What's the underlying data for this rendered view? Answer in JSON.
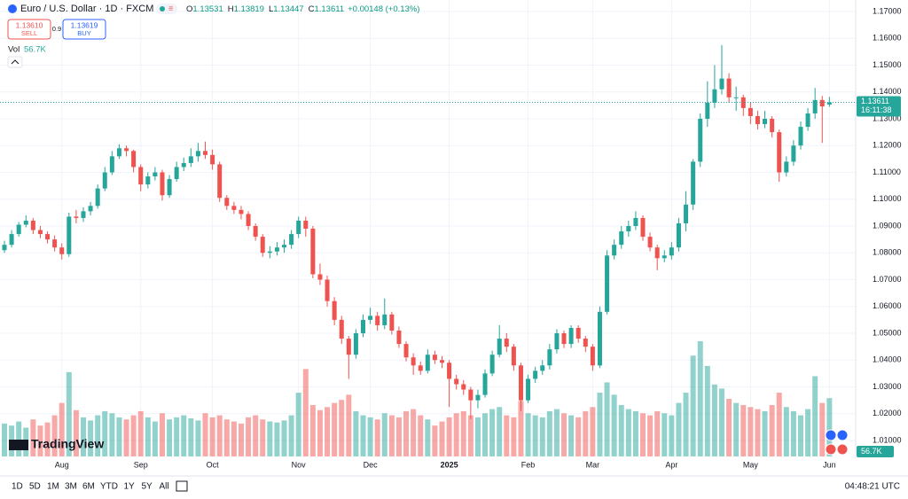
{
  "header": {
    "title": "Euro / U.S. Dollar · 1D · FXCM",
    "legend_keys": [
      "O",
      "H",
      "L",
      "C"
    ],
    "change": "+0.00148 (+0.13%)",
    "sell_price": "1.13610",
    "sell_label": "SELL",
    "spread": "0.9",
    "buy_price": "1.13619",
    "buy_label": "BUY",
    "vol_label": "Vol",
    "vol_value": "56.7K",
    "logo": "TradingView"
  },
  "chart_data": {
    "type": "candlestick",
    "up_color": "#26a69a",
    "down_color": "#ef5350",
    "grid": true,
    "ylim": [
      1.00405,
      1.1743
    ],
    "yticks": [
      {
        "value": 1.17,
        "label": "1.17000"
      },
      {
        "value": 1.16,
        "label": "1.16000"
      },
      {
        "value": 1.15,
        "label": "1.15000"
      },
      {
        "value": 1.14,
        "label": "1.14000"
      },
      {
        "value": 1.13,
        "label": "1.13000"
      },
      {
        "value": 1.12,
        "label": "1.12000"
      },
      {
        "value": 1.11,
        "label": "1.11000"
      },
      {
        "value": 1.1,
        "label": "1.10000"
      },
      {
        "value": 1.09,
        "label": "1.09000"
      },
      {
        "value": 1.08,
        "label": "1.08000"
      },
      {
        "value": 1.07,
        "label": "1.07000"
      },
      {
        "value": 1.06,
        "label": "1.06000"
      },
      {
        "value": 1.05,
        "label": "1.05000"
      },
      {
        "value": 1.04,
        "label": "1.04000"
      },
      {
        "value": 1.03,
        "label": "1.03000"
      },
      {
        "value": 1.02,
        "label": "1.02000"
      },
      {
        "value": 1.01,
        "label": "1.01000"
      }
    ],
    "xticks": [
      {
        "value": 8,
        "label": "Aug"
      },
      {
        "value": 19,
        "label": "Sep"
      },
      {
        "value": 29,
        "label": "Oct"
      },
      {
        "value": 41,
        "label": "Nov"
      },
      {
        "value": 51,
        "label": "Dec"
      },
      {
        "value": 62,
        "label": "2025"
      },
      {
        "value": 73,
        "label": "Feb"
      },
      {
        "value": 82,
        "label": "Mar"
      },
      {
        "value": 93,
        "label": "Apr"
      },
      {
        "value": 104,
        "label": "May"
      },
      {
        "value": 115,
        "label": "Jun"
      }
    ],
    "ohlc": [
      [
        1.081,
        1.0845,
        1.08,
        1.083
      ],
      [
        1.083,
        1.0885,
        1.082,
        1.087
      ],
      [
        1.087,
        1.0915,
        1.086,
        1.0905
      ],
      [
        1.0905,
        1.094,
        1.0895,
        1.092
      ],
      [
        1.092,
        1.093,
        1.087,
        1.0885
      ],
      [
        1.0885,
        1.09,
        1.0855,
        1.087
      ],
      [
        1.087,
        1.088,
        1.0835,
        1.085
      ],
      [
        1.085,
        1.0865,
        1.0805,
        1.082
      ],
      [
        1.082,
        1.0835,
        1.0775,
        1.0795
      ],
      [
        1.0795,
        1.095,
        1.0785,
        1.0935
      ],
      [
        1.0935,
        1.096,
        1.091,
        1.093
      ],
      [
        1.093,
        1.097,
        1.0915,
        1.0955
      ],
      [
        1.0955,
        1.099,
        1.094,
        1.0975
      ],
      [
        1.0975,
        1.1055,
        1.0965,
        1.104
      ],
      [
        1.104,
        1.112,
        1.103,
        1.11
      ],
      [
        1.11,
        1.118,
        1.109,
        1.116
      ],
      [
        1.116,
        1.1205,
        1.115,
        1.119
      ],
      [
        1.119,
        1.12,
        1.116,
        1.118
      ],
      [
        1.118,
        1.1185,
        1.11,
        1.112
      ],
      [
        1.112,
        1.113,
        1.103,
        1.1055
      ],
      [
        1.1055,
        1.11,
        1.104,
        1.1085
      ],
      [
        1.1085,
        1.112,
        1.107,
        1.11
      ],
      [
        1.11,
        1.111,
        1.0995,
        1.1015
      ],
      [
        1.1015,
        1.109,
        1.1005,
        1.1075
      ],
      [
        1.1075,
        1.114,
        1.1065,
        1.112
      ],
      [
        1.112,
        1.1155,
        1.1105,
        1.1135
      ],
      [
        1.1135,
        1.119,
        1.112,
        1.116
      ],
      [
        1.116,
        1.121,
        1.114,
        1.118
      ],
      [
        1.118,
        1.1215,
        1.115,
        1.1165
      ],
      [
        1.1165,
        1.1185,
        1.111,
        1.113
      ],
      [
        1.113,
        1.114,
        1.099,
        1.1005
      ],
      [
        1.1005,
        1.1015,
        1.096,
        1.0975
      ],
      [
        1.0975,
        1.099,
        1.0945,
        1.096
      ],
      [
        1.096,
        1.0975,
        1.0925,
        1.0945
      ],
      [
        1.0945,
        1.0955,
        1.0885,
        1.09
      ],
      [
        1.09,
        1.091,
        1.0845,
        1.086
      ],
      [
        1.086,
        1.087,
        1.0785,
        1.08
      ],
      [
        1.08,
        1.0825,
        1.078,
        1.0805
      ],
      [
        1.0805,
        1.084,
        1.079,
        1.082
      ],
      [
        1.082,
        1.085,
        1.08,
        1.083
      ],
      [
        1.083,
        1.0885,
        1.0815,
        1.087
      ],
      [
        1.087,
        1.0935,
        1.0855,
        1.092
      ],
      [
        1.092,
        1.0935,
        1.086,
        1.089
      ],
      [
        1.089,
        1.09,
        1.0705,
        1.072
      ],
      [
        1.072,
        1.076,
        1.068,
        1.07
      ],
      [
        1.07,
        1.0715,
        1.06,
        1.062
      ],
      [
        1.062,
        1.0635,
        1.053,
        1.055
      ],
      [
        1.055,
        1.0565,
        1.046,
        1.048
      ],
      [
        1.048,
        1.049,
        1.033,
        1.042
      ],
      [
        1.042,
        1.0515,
        1.0405,
        1.05
      ],
      [
        1.05,
        1.057,
        1.0485,
        1.055
      ],
      [
        1.055,
        1.0595,
        1.0535,
        1.0565
      ],
      [
        1.0565,
        1.058,
        1.051,
        1.053
      ],
      [
        1.053,
        1.063,
        1.0515,
        1.057
      ],
      [
        1.057,
        1.058,
        1.0495,
        1.051
      ],
      [
        1.051,
        1.0525,
        1.0445,
        1.046
      ],
      [
        1.046,
        1.047,
        1.0395,
        1.041
      ],
      [
        1.041,
        1.0425,
        1.0345,
        1.038
      ],
      [
        1.038,
        1.0395,
        1.0345,
        1.036
      ],
      [
        1.036,
        1.044,
        1.035,
        1.042
      ],
      [
        1.042,
        1.0435,
        1.0385,
        1.04
      ],
      [
        1.04,
        1.0415,
        1.037,
        1.039
      ],
      [
        1.039,
        1.04,
        1.0225,
        1.033
      ],
      [
        1.033,
        1.0345,
        1.029,
        1.031
      ],
      [
        1.031,
        1.0325,
        1.027,
        1.029
      ],
      [
        1.029,
        1.03,
        1.018,
        1.025
      ],
      [
        1.025,
        1.029,
        1.022,
        1.027
      ],
      [
        1.027,
        1.0365,
        1.026,
        1.035
      ],
      [
        1.035,
        1.0435,
        1.034,
        1.042
      ],
      [
        1.042,
        1.053,
        1.041,
        1.048
      ],
      [
        1.048,
        1.05,
        1.043,
        1.045
      ],
      [
        1.045,
        1.046,
        1.036,
        1.038
      ],
      [
        1.038,
        1.039,
        1.021,
        1.025
      ],
      [
        1.025,
        1.0345,
        1.024,
        1.033
      ],
      [
        1.033,
        1.0375,
        1.0315,
        1.036
      ],
      [
        1.036,
        1.04,
        1.0345,
        1.038
      ],
      [
        1.038,
        1.046,
        1.0365,
        1.044
      ],
      [
        1.044,
        1.0515,
        1.0425,
        1.05
      ],
      [
        1.05,
        1.051,
        1.0445,
        1.046
      ],
      [
        1.046,
        1.053,
        1.0445,
        1.052
      ],
      [
        1.052,
        1.053,
        1.0465,
        1.048
      ],
      [
        1.048,
        1.049,
        1.043,
        1.045
      ],
      [
        1.045,
        1.046,
        1.036,
        1.038
      ],
      [
        1.038,
        1.06,
        1.037,
        1.058
      ],
      [
        1.058,
        1.081,
        1.057,
        1.079
      ],
      [
        1.079,
        1.085,
        1.0775,
        1.083
      ],
      [
        1.083,
        1.09,
        1.0815,
        1.088
      ],
      [
        1.088,
        1.092,
        1.086,
        1.09
      ],
      [
        1.09,
        1.0955,
        1.0885,
        1.093
      ],
      [
        1.093,
        1.094,
        1.0845,
        1.086
      ],
      [
        1.086,
        1.0875,
        1.0805,
        1.082
      ],
      [
        1.082,
        1.083,
        1.0735,
        1.078
      ],
      [
        1.078,
        1.081,
        1.0765,
        1.079
      ],
      [
        1.079,
        1.084,
        1.0775,
        1.082
      ],
      [
        1.082,
        1.093,
        1.0805,
        1.091
      ],
      [
        1.091,
        1.103,
        1.088,
        1.098
      ],
      [
        1.098,
        1.115,
        1.096,
        1.114
      ],
      [
        1.114,
        1.132,
        1.112,
        1.13
      ],
      [
        1.13,
        1.144,
        1.127,
        1.136
      ],
      [
        1.136,
        1.15,
        1.134,
        1.141
      ],
      [
        1.141,
        1.1575,
        1.139,
        1.145
      ],
      [
        1.145,
        1.147,
        1.136,
        1.138
      ],
      [
        1.138,
        1.142,
        1.133,
        1.138
      ],
      [
        1.138,
        1.139,
        1.131,
        1.134
      ],
      [
        1.134,
        1.136,
        1.128,
        1.131
      ],
      [
        1.131,
        1.133,
        1.126,
        1.128
      ],
      [
        1.128,
        1.133,
        1.1265,
        1.13
      ],
      [
        1.13,
        1.131,
        1.123,
        1.125
      ],
      [
        1.125,
        1.126,
        1.1065,
        1.11
      ],
      [
        1.11,
        1.116,
        1.1085,
        1.114
      ],
      [
        1.114,
        1.122,
        1.1125,
        1.12
      ],
      [
        1.12,
        1.129,
        1.1185,
        1.127
      ],
      [
        1.127,
        1.134,
        1.1255,
        1.132
      ],
      [
        1.132,
        1.1415,
        1.13,
        1.137
      ],
      [
        1.137,
        1.1385,
        1.121,
        1.1346
      ],
      [
        1.13531,
        1.13819,
        1.13447,
        1.13611
      ]
    ],
    "volume": [
      32000,
      30000,
      34000,
      28000,
      36000,
      30000,
      33000,
      40000,
      52000,
      82000,
      45000,
      38000,
      35000,
      40000,
      44000,
      42000,
      38000,
      36000,
      40000,
      44000,
      38000,
      34000,
      42000,
      36000,
      38000,
      40000,
      37000,
      35000,
      42000,
      38000,
      40000,
      36000,
      34000,
      32000,
      38000,
      40000,
      36000,
      34000,
      33000,
      35000,
      40000,
      62000,
      85000,
      50000,
      45000,
      48000,
      52000,
      55000,
      60000,
      44000,
      40000,
      38000,
      36000,
      42000,
      40000,
      38000,
      44000,
      46000,
      40000,
      36000,
      30000,
      34000,
      38000,
      42000,
      44000,
      40000,
      38000,
      42000,
      46000,
      48000,
      40000,
      38000,
      54000,
      42000,
      40000,
      38000,
      44000,
      46000,
      42000,
      40000,
      38000,
      44000,
      48000,
      62000,
      72000,
      60000,
      50000,
      46000,
      44000,
      42000,
      40000,
      44000,
      42000,
      40000,
      52000,
      62000,
      98000,
      112000,
      88000,
      70000,
      66000,
      56000,
      52000,
      50000,
      48000,
      46000,
      44000,
      50000,
      62000,
      48000,
      44000,
      40000,
      46000,
      78000,
      52000,
      56700
    ],
    "volume_last_label": "56.7K",
    "countdown": "16:11:38"
  },
  "toolbar": {
    "ranges": [
      "1D",
      "5D",
      "1M",
      "3M",
      "6M",
      "YTD",
      "1Y",
      "5Y",
      "All"
    ],
    "clock": "04:48:21 UTC"
  }
}
